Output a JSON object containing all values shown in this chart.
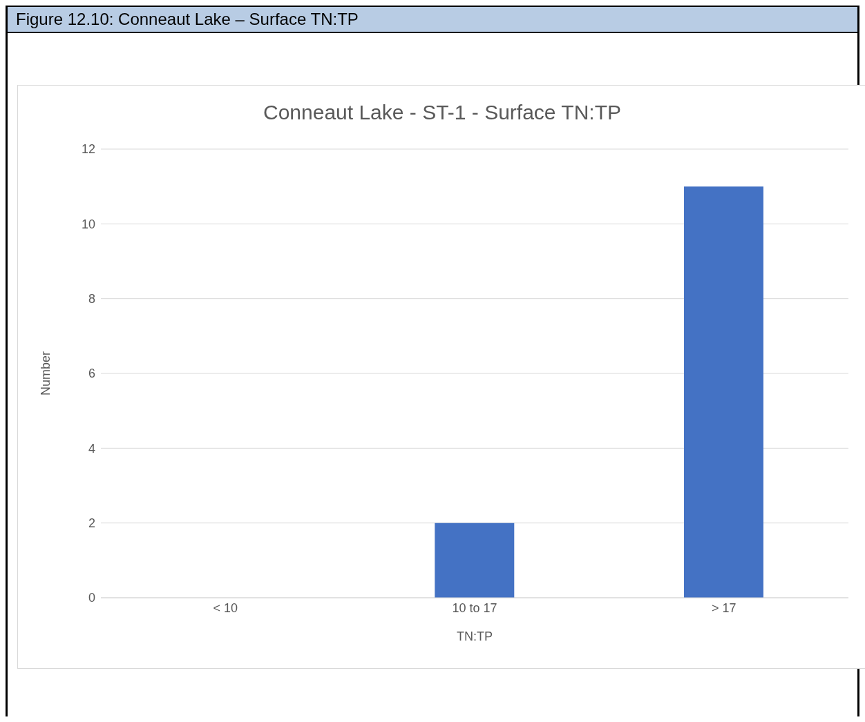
{
  "chart_data": {
    "type": "bar",
    "title": "Figure 12.10: Conneaut Lake – Surface TN:TP",
    "subtitle": "Conneaut Lake - ST-1 - Surface TN:TP",
    "xlabel": "TN:TP",
    "ylabel": "Number",
    "categories": [
      "< 10",
      "10 to 17",
      "> 17"
    ],
    "values": [
      0,
      2,
      11
    ],
    "color": "#4472c4",
    "ylim": [
      0,
      12
    ],
    "yticks": [
      0,
      2,
      4,
      6,
      8,
      10,
      12
    ],
    "grid": "y"
  }
}
